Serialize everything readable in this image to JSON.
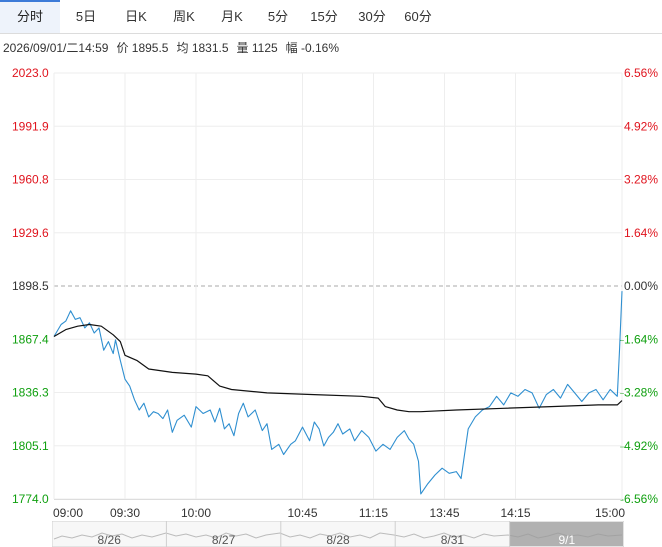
{
  "tabs": [
    {
      "label": "分时",
      "active": true
    },
    {
      "label": "5日",
      "active": false
    },
    {
      "label": "日K",
      "active": false
    },
    {
      "label": "周K",
      "active": false
    },
    {
      "label": "月K",
      "active": false
    },
    {
      "label": "5分",
      "active": false
    },
    {
      "label": "15分",
      "active": false
    },
    {
      "label": "30分",
      "active": false
    },
    {
      "label": "60分",
      "active": false
    }
  ],
  "info": {
    "datetime": "2026/09/01/二14:59",
    "price": "价 1895.5",
    "avg": "均 1831.5",
    "volume": "量 1125",
    "change": "幅 -0.16%"
  },
  "colors": {
    "up": "#e0141e",
    "down": "#10a010",
    "price_line": "#2f8fd0",
    "avg_line": "#111111",
    "tab_accent": "#3d7bd8"
  },
  "chart_data": {
    "type": "line",
    "ylim": [
      1774.0,
      2023.0
    ],
    "prev_close": 1898.5,
    "y_ticks": [
      "2023.0",
      "1991.9",
      "1960.8",
      "1929.6",
      "1898.5",
      "1867.4",
      "1836.3",
      "1805.1",
      "1774.0"
    ],
    "pct_ticks": [
      "6.56%",
      "4.92%",
      "3.28%",
      "1.64%",
      "0.00%",
      "-1.64%",
      "-3.28%",
      "-4.92%",
      "-6.56%"
    ],
    "x_ticks": [
      "09:00",
      "09:30",
      "10:00",
      "10:45",
      "11:15",
      "13:45",
      "14:15",
      "15:00"
    ],
    "x_tick_index": [
      0,
      30,
      60,
      105,
      135,
      165,
      195,
      240
    ],
    "session_points": 241,
    "series": [
      {
        "name": "价",
        "values": [
          [
            0,
            1869
          ],
          [
            3,
            1876
          ],
          [
            5,
            1878
          ],
          [
            7,
            1884
          ],
          [
            9,
            1879
          ],
          [
            11,
            1880
          ],
          [
            13,
            1874
          ],
          [
            15,
            1877
          ],
          [
            17,
            1871
          ],
          [
            19,
            1874
          ],
          [
            21,
            1861
          ],
          [
            23,
            1866
          ],
          [
            25,
            1859
          ],
          [
            26,
            1867
          ],
          [
            28,
            1855
          ],
          [
            30,
            1844
          ],
          [
            32,
            1840
          ],
          [
            34,
            1832
          ],
          [
            36,
            1826
          ],
          [
            38,
            1830
          ],
          [
            40,
            1822
          ],
          [
            42,
            1825
          ],
          [
            44,
            1824
          ],
          [
            46,
            1821
          ],
          [
            48,
            1826
          ],
          [
            50,
            1813
          ],
          [
            52,
            1820
          ],
          [
            55,
            1823
          ],
          [
            58,
            1816
          ],
          [
            60,
            1828
          ],
          [
            63,
            1824
          ],
          [
            66,
            1826
          ],
          [
            68,
            1819
          ],
          [
            70,
            1827
          ],
          [
            72,
            1815
          ],
          [
            74,
            1818
          ],
          [
            76,
            1811
          ],
          [
            78,
            1824
          ],
          [
            80,
            1830
          ],
          [
            82,
            1822
          ],
          [
            85,
            1826
          ],
          [
            88,
            1814
          ],
          [
            90,
            1818
          ],
          [
            92,
            1803
          ],
          [
            95,
            1806
          ],
          [
            97,
            1800
          ],
          [
            100,
            1806
          ],
          [
            102,
            1808
          ],
          [
            105,
            1816
          ],
          [
            108,
            1808
          ],
          [
            110,
            1819
          ],
          [
            112,
            1815
          ],
          [
            114,
            1805
          ],
          [
            116,
            1810
          ],
          [
            118,
            1813
          ],
          [
            120,
            1818
          ],
          [
            122,
            1812
          ],
          [
            125,
            1815
          ],
          [
            127,
            1808
          ],
          [
            130,
            1814
          ],
          [
            133,
            1810
          ],
          [
            136,
            1802
          ],
          [
            139,
            1806
          ],
          [
            142,
            1803
          ],
          [
            145,
            1810
          ],
          [
            148,
            1814
          ],
          [
            150,
            1809
          ],
          [
            152,
            1806
          ],
          [
            154,
            1796
          ],
          [
            155,
            1777
          ],
          [
            158,
            1783
          ],
          [
            161,
            1788
          ],
          [
            164,
            1792
          ],
          [
            167,
            1789
          ],
          [
            170,
            1790
          ],
          [
            172,
            1786
          ],
          [
            175,
            1815
          ],
          [
            178,
            1822
          ],
          [
            181,
            1826
          ],
          [
            184,
            1828
          ],
          [
            187,
            1834
          ],
          [
            190,
            1829
          ],
          [
            193,
            1836
          ],
          [
            196,
            1834
          ],
          [
            199,
            1838
          ],
          [
            202,
            1836
          ],
          [
            205,
            1827
          ],
          [
            208,
            1835
          ],
          [
            211,
            1838
          ],
          [
            214,
            1833
          ],
          [
            217,
            1841
          ],
          [
            220,
            1836
          ],
          [
            223,
            1831
          ],
          [
            226,
            1836
          ],
          [
            229,
            1838
          ],
          [
            232,
            1832
          ],
          [
            235,
            1838
          ],
          [
            238,
            1834
          ],
          [
            239,
            1862
          ],
          [
            240,
            1895.5
          ]
        ]
      },
      {
        "name": "均",
        "values": [
          [
            0,
            1869
          ],
          [
            5,
            1873
          ],
          [
            10,
            1875
          ],
          [
            15,
            1876
          ],
          [
            20,
            1875
          ],
          [
            25,
            1870
          ],
          [
            28,
            1866
          ],
          [
            30,
            1858
          ],
          [
            35,
            1855
          ],
          [
            40,
            1850
          ],
          [
            50,
            1848
          ],
          [
            60,
            1847
          ],
          [
            65,
            1846
          ],
          [
            70,
            1840
          ],
          [
            75,
            1838
          ],
          [
            90,
            1836
          ],
          [
            110,
            1835
          ],
          [
            130,
            1834
          ],
          [
            137,
            1833
          ],
          [
            140,
            1828
          ],
          [
            145,
            1826
          ],
          [
            150,
            1825
          ],
          [
            155,
            1825
          ],
          [
            170,
            1826
          ],
          [
            190,
            1827
          ],
          [
            210,
            1828
          ],
          [
            230,
            1829
          ],
          [
            238,
            1829
          ],
          [
            240,
            1831.5
          ]
        ]
      }
    ]
  },
  "timeline": {
    "days": [
      "8/26",
      "8/27",
      "8/28",
      "8/31",
      "9/1"
    ]
  }
}
